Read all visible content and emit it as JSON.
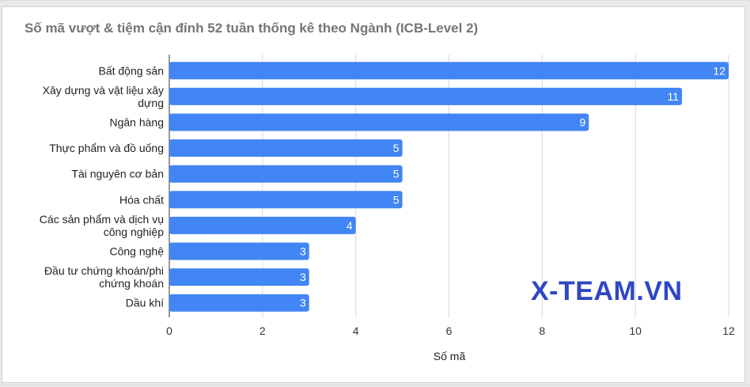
{
  "chart_data": {
    "type": "bar",
    "orientation": "horizontal",
    "title": "Số mã vượt & tiệm cận đỉnh 52 tuần thống kê theo Ngành (ICB-Level 2)",
    "xlabel": "Số mã",
    "ylabel": "",
    "categories": [
      "Bất động sản",
      "Xây dựng và vật liệu xây dựng",
      "Ngân hàng",
      "Thực phẩm và đồ uống",
      "Tài nguyên cơ bản",
      "Hóa chất",
      "Các sản phẩm và dịch vụ công nghiệp",
      "Công nghệ",
      "Đầu tư chứng khoán/phi chứng khoán",
      "Dầu khí"
    ],
    "category_lines": [
      [
        "Bất động sản"
      ],
      [
        "Xây dựng và vật liệu xây",
        "dựng"
      ],
      [
        "Ngân hàng"
      ],
      [
        "Thực phẩm và đồ uống"
      ],
      [
        "Tài nguyên cơ bản"
      ],
      [
        "Hóa chất"
      ],
      [
        "Các sản phẩm và dịch vụ",
        "công nghiệp"
      ],
      [
        "Công nghệ"
      ],
      [
        "Đầu tư chứng khoán/phi",
        "chứng khoán"
      ],
      [
        "Dầu khí"
      ]
    ],
    "values": [
      12,
      11,
      9,
      5,
      5,
      5,
      4,
      3,
      3,
      3
    ],
    "xlim": [
      0,
      12
    ],
    "xticks": [
      0,
      2,
      4,
      6,
      8,
      10,
      12
    ],
    "data_labels": true,
    "grid": true,
    "bar_color": "#4285f4",
    "label_color": "#ffffff"
  },
  "watermark": "X-TEAM.VN"
}
